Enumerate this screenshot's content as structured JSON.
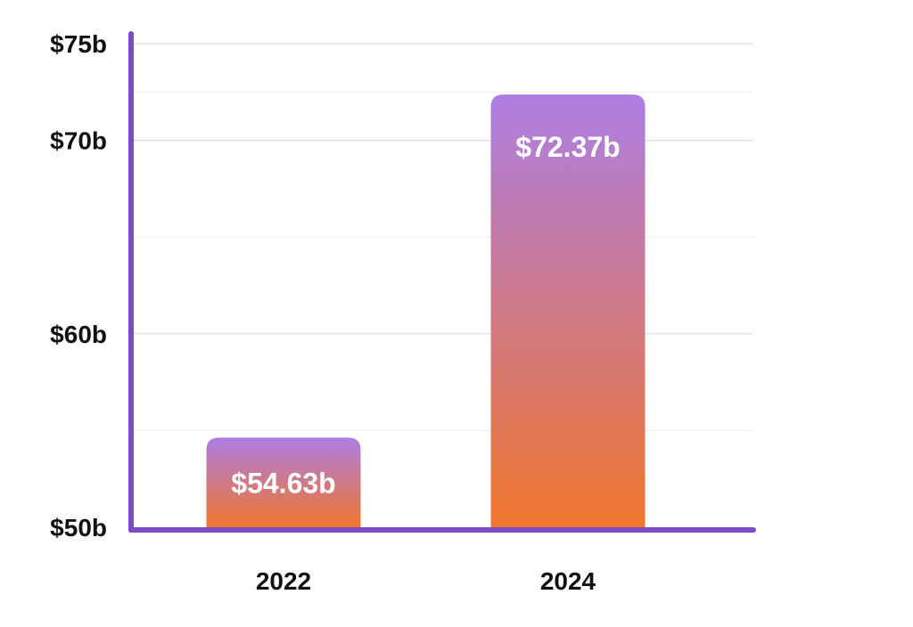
{
  "chart_data": {
    "type": "bar",
    "categories": [
      "2022",
      "2024"
    ],
    "values": [
      54.63,
      72.37
    ],
    "value_labels": [
      "$54.63b",
      "$72.37b"
    ],
    "y_ticks": [
      {
        "value": 50,
        "label": "$50b"
      },
      {
        "value": 60,
        "label": "$60b"
      },
      {
        "value": 70,
        "label": "$70b"
      },
      {
        "value": 75,
        "label": "$75b"
      }
    ],
    "ylim": [
      50,
      75
    ],
    "grid": true,
    "title": "",
    "xlabel": "",
    "ylabel": ""
  },
  "colors": {
    "axis": "#7b4cc9",
    "bar_top": "#ad7ee3",
    "bar_bottom": "#f0762c",
    "grid": "#dddddd",
    "grid_minor": "#eeeeee"
  }
}
